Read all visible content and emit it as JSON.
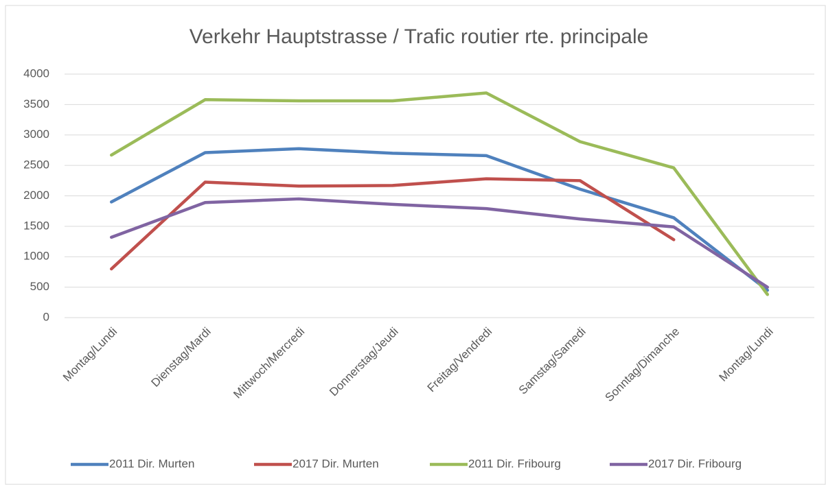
{
  "chart_data": {
    "type": "line",
    "title": "Verkehr Hauptstrasse / Trafic routier rte. principale",
    "categories": [
      "Montag/Lundi",
      "Dienstag/Mardi",
      "Mittwoch/Mercredi",
      "Donnerstag/Jeudi",
      "Freitag/Vendredi",
      "Samstag/Samedi",
      "Sonntag/Dimanche",
      "Montag/Lundi"
    ],
    "series": [
      {
        "name": "2011 Dir. Murten",
        "color": "#4f81bd",
        "values": [
          1900,
          2710,
          2775,
          2700,
          2660,
          2110,
          1640,
          450
        ]
      },
      {
        "name": "2017 Dir. Murten",
        "color": "#c0504d",
        "values": [
          800,
          2225,
          2160,
          2170,
          2280,
          2250,
          1280,
          null
        ]
      },
      {
        "name": "2011 Dir. Fribourg",
        "color": "#9bbb59",
        "values": [
          2670,
          3580,
          3560,
          3560,
          3690,
          2890,
          2460,
          380
        ]
      },
      {
        "name": "2017 Dir. Fribourg",
        "color": "#8064a2",
        "values": [
          1320,
          1890,
          1950,
          1860,
          1790,
          1620,
          1490,
          500
        ]
      }
    ],
    "ylim": [
      0,
      4000
    ],
    "yticks": [
      0,
      500,
      1000,
      1500,
      2000,
      2500,
      3000,
      3500,
      4000
    ],
    "grid": true,
    "legend": "bottom"
  }
}
